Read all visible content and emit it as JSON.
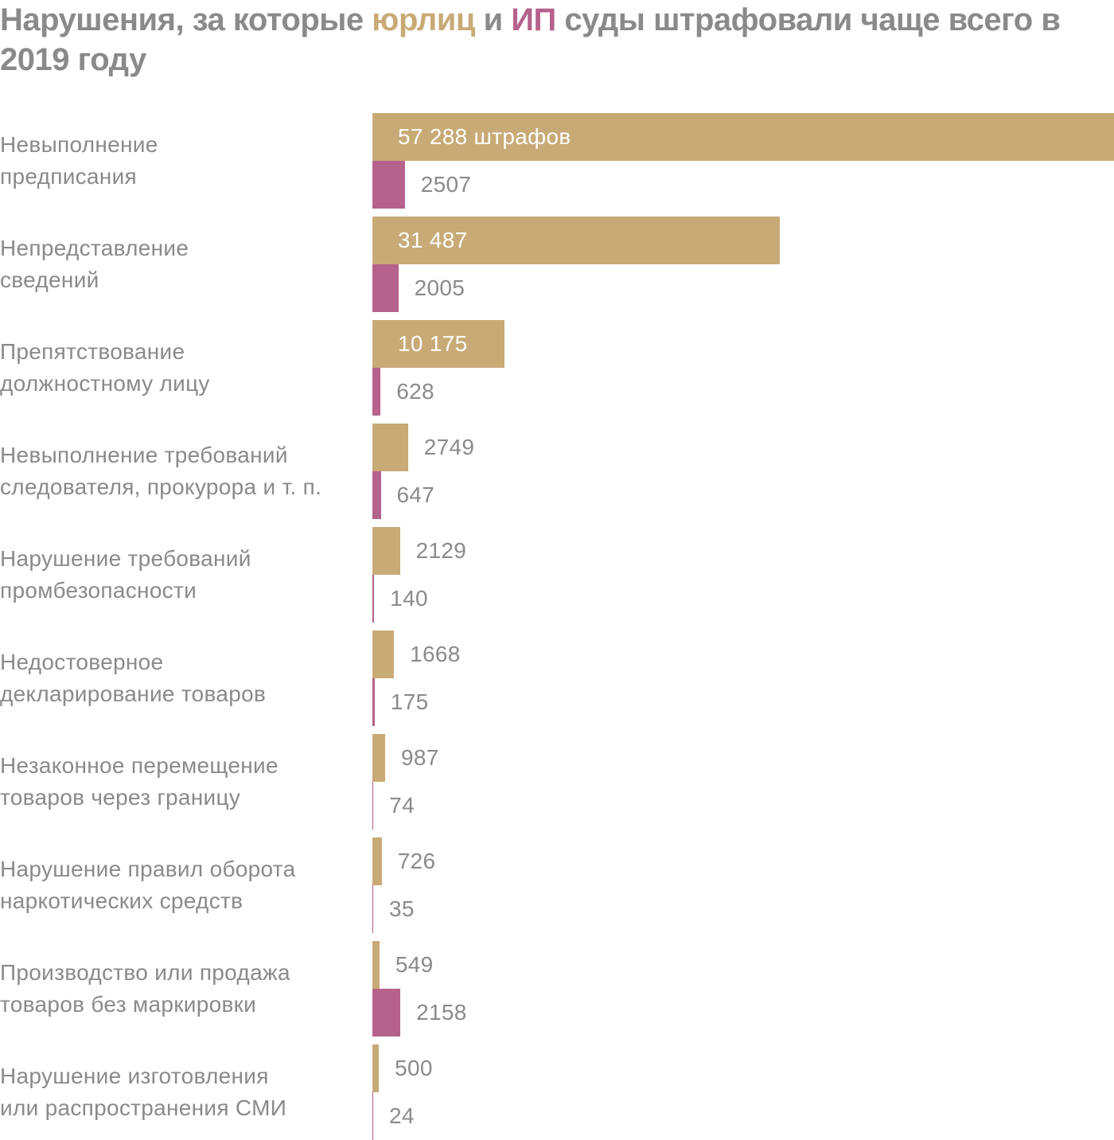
{
  "title": {
    "part1": "Нарушения, за которые ",
    "legal": "юрлиц",
    "part2": " и ",
    "ip": "ИП",
    "part3": " суды штрафовали чаще всего в 2019 году"
  },
  "colors": {
    "legal": "#c8aa76",
    "ip": "#b5628c",
    "text": "#8a8a8a"
  },
  "chart_data": {
    "type": "bar",
    "orientation": "horizontal",
    "title": "Нарушения, за которые юрлиц и ИП суды штрафовали чаще всего в 2019 году",
    "categories": [
      "Невыполнение предписания",
      "Непредставление сведений",
      "Препятствование должностному лицу",
      "Невыполнение требований следователя, прокурора и т. п.",
      "Нарушение требований промбезопасности",
      "Недостоверное декларирование товаров",
      "Незаконное перемещение товаров через границу",
      "Нарушение правил оборота наркотических средств",
      "Производство или продажа товаров без маркировки",
      "Нарушение изготовления или распространения СМИ"
    ],
    "category_lines": [
      [
        "Невыполнение",
        "предписания"
      ],
      [
        "Непредставление",
        "сведений"
      ],
      [
        "Препятствование",
        "должностному лицу"
      ],
      [
        "Невыполнение требований",
        "следователя, прокурора и т. п."
      ],
      [
        "Нарушение требований",
        "промбезопасности"
      ],
      [
        "Недостоверное",
        "декларирование товаров"
      ],
      [
        "Незаконное перемещение",
        "товаров через границу"
      ],
      [
        "Нарушение правил оборота",
        "наркотических средств"
      ],
      [
        "Производство или продажа",
        "товаров без маркировки"
      ],
      [
        "Нарушение изготовления",
        "или распространения СМИ"
      ]
    ],
    "series": [
      {
        "name": "юрлиц",
        "values": [
          57288,
          31487,
          10175,
          2749,
          2129,
          1668,
          987,
          726,
          549,
          500
        ],
        "labels": [
          "57 288 штрафов",
          "31 487",
          "10 175",
          "2749",
          "2129",
          "1668",
          "987",
          "726",
          "549",
          "500"
        ]
      },
      {
        "name": "ИП",
        "values": [
          2507,
          2005,
          628,
          647,
          140,
          175,
          74,
          35,
          2158,
          24
        ],
        "labels": [
          "2507",
          "2005",
          "628",
          "647",
          "140",
          "175",
          "74",
          "35",
          "2158",
          "24"
        ]
      }
    ],
    "xlim": [
      0,
      57288
    ],
    "grid": false,
    "legend": "in-title"
  }
}
